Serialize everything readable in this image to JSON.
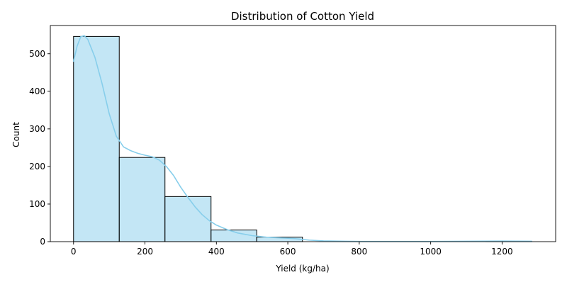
{
  "chart_data": {
    "type": "histogram",
    "title": "Distribution of Cotton Yield",
    "xlabel": "Yield (kg/ha)",
    "ylabel": "Count",
    "xlim": [
      -65,
      1350
    ],
    "ylim": [
      0,
      575
    ],
    "x_ticks": [
      0,
      200,
      400,
      600,
      800,
      1000,
      1200
    ],
    "y_ticks": [
      0,
      100,
      200,
      300,
      400,
      500
    ],
    "grid": false,
    "bar_color": "#87CEEB",
    "bar_fill_opacity": 0.5,
    "bar_edge_color": "#000000",
    "kde_color": "#87CEEB",
    "bins": [
      {
        "x0": 0,
        "x1": 128,
        "count": 546
      },
      {
        "x0": 128,
        "x1": 256,
        "count": 224
      },
      {
        "x0": 256,
        "x1": 385,
        "count": 120
      },
      {
        "x0": 385,
        "x1": 513,
        "count": 31
      },
      {
        "x0": 513,
        "x1": 641,
        "count": 12
      },
      {
        "x0": 641,
        "x1": 770,
        "count": 0
      },
      {
        "x0": 770,
        "x1": 898,
        "count": 0
      },
      {
        "x0": 898,
        "x1": 1026,
        "count": 0
      },
      {
        "x0": 1026,
        "x1": 1155,
        "count": 0
      },
      {
        "x0": 1155,
        "x1": 1283,
        "count": 1
      }
    ],
    "kde": {
      "x": [
        0,
        10,
        20,
        30,
        40,
        60,
        80,
        100,
        120,
        140,
        160,
        180,
        200,
        220,
        240,
        260,
        280,
        300,
        320,
        340,
        360,
        380,
        400,
        430,
        460,
        500,
        540,
        580,
        620,
        660,
        700,
        760,
        820,
        900,
        1000,
        1100,
        1200,
        1283
      ],
      "y": [
        480,
        520,
        545,
        548,
        538,
        490,
        420,
        340,
        280,
        252,
        242,
        235,
        230,
        226,
        217,
        200,
        176,
        145,
        118,
        93,
        72,
        56,
        44,
        32,
        23,
        16,
        12,
        10,
        8,
        4,
        2,
        1,
        0.5,
        0.5,
        0.5,
        1,
        1.5,
        1
      ]
    }
  }
}
